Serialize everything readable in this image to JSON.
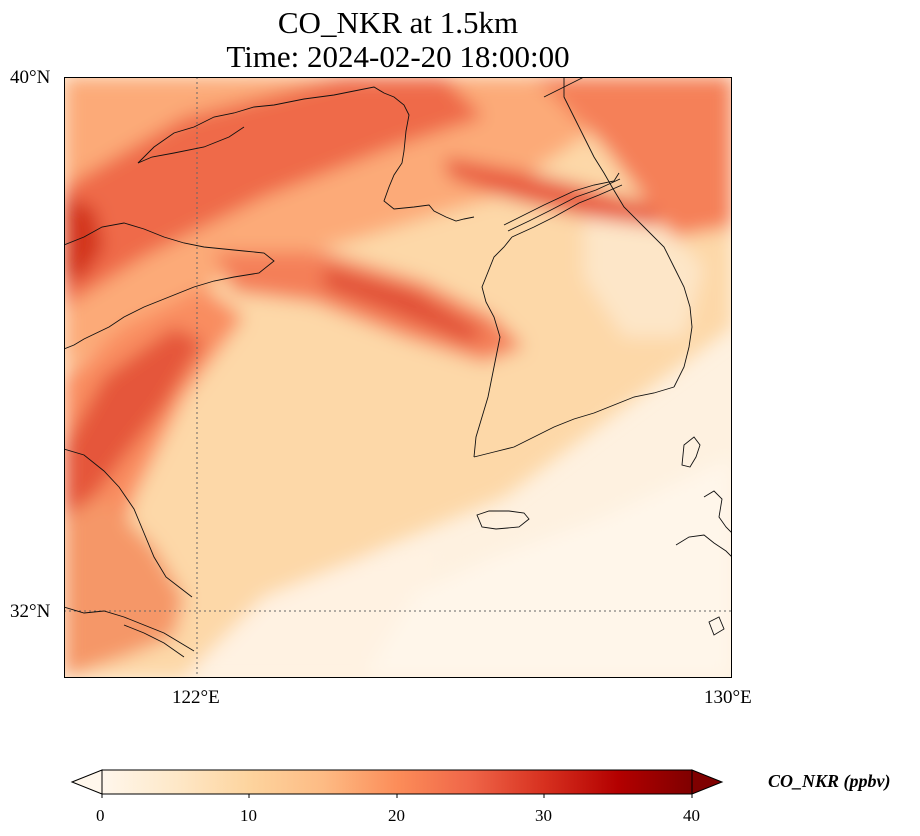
{
  "title": {
    "line1": "CO_NKR at 1.5km",
    "line2": "Time: 2024-02-20 18:00:00"
  },
  "map": {
    "lat_ticks": [
      "40°N",
      "32°N"
    ],
    "lon_ticks": [
      "122°E",
      "130°E"
    ],
    "extent": {
      "lon_min": 120,
      "lon_max": 130,
      "lat_min": 31,
      "lat_max": 40
    },
    "gridlines": {
      "lon": 122,
      "lat": 32,
      "style": "dotted"
    },
    "field_name": "CO_NKR",
    "level": "1.5km"
  },
  "colorbar": {
    "label": "CO_NKR (ppbv)",
    "ticks": [
      "0",
      "10",
      "20",
      "30",
      "40"
    ],
    "range": [
      0,
      40
    ],
    "colormap": "OrRd",
    "colors": [
      "#fff7ec",
      "#fee8c8",
      "#fdd49e",
      "#fdbb84",
      "#fc8d59",
      "#ef6548",
      "#d7301f",
      "#b30000",
      "#7f0000"
    ],
    "extend": "both"
  }
}
